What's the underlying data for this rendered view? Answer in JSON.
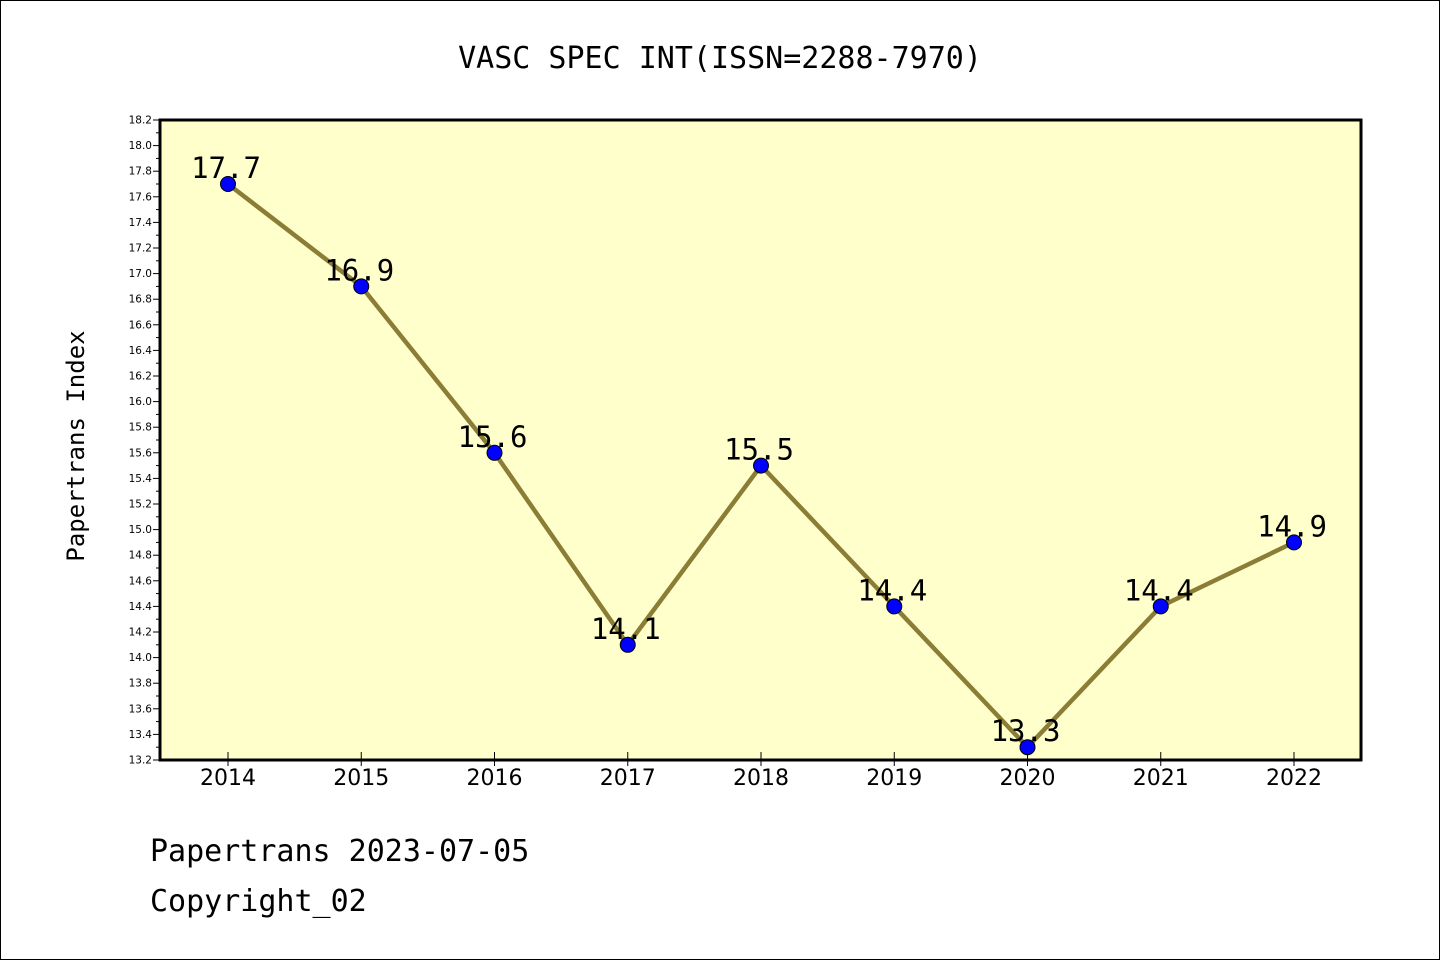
{
  "chart_data": {
    "type": "line",
    "title": "VASC SPEC INT(ISSN=2288-7970)",
    "xlabel": "",
    "ylabel": "Papertrans Index",
    "categories": [
      "2014",
      "2015",
      "2016",
      "2017",
      "2018",
      "2019",
      "2020",
      "2021",
      "2022"
    ],
    "series": [
      {
        "values": [
          17.7,
          16.9,
          15.6,
          14.1,
          15.5,
          14.4,
          13.3,
          14.4,
          14.9
        ]
      }
    ],
    "data_labels": [
      "17.7",
      "16.9",
      "15.6",
      "14.1",
      "15.5",
      "14.4",
      "13.3",
      "14.4",
      "14.9"
    ],
    "ylim": [
      13.2,
      18.2
    ],
    "y_major_step": 0.2,
    "y_ticks": [
      "13.2",
      "13.4",
      "13.6",
      "13.8",
      "14.0",
      "14.2",
      "14.4",
      "14.6",
      "14.8",
      "15.0",
      "15.2",
      "15.4",
      "15.6",
      "15.8",
      "16.0",
      "16.2",
      "16.4",
      "16.6",
      "16.8",
      "17.0",
      "17.2",
      "17.4",
      "17.6",
      "17.8",
      "18.0",
      "18.2"
    ],
    "grid": false,
    "legend": "none",
    "colors": {
      "plot_background": "#ffffcc",
      "line": "#8b7d35",
      "marker": "#0000ff",
      "axis": "#000000"
    }
  },
  "footer": {
    "source": "Papertrans 2023-07-05",
    "copyright": "Copyright_02"
  }
}
